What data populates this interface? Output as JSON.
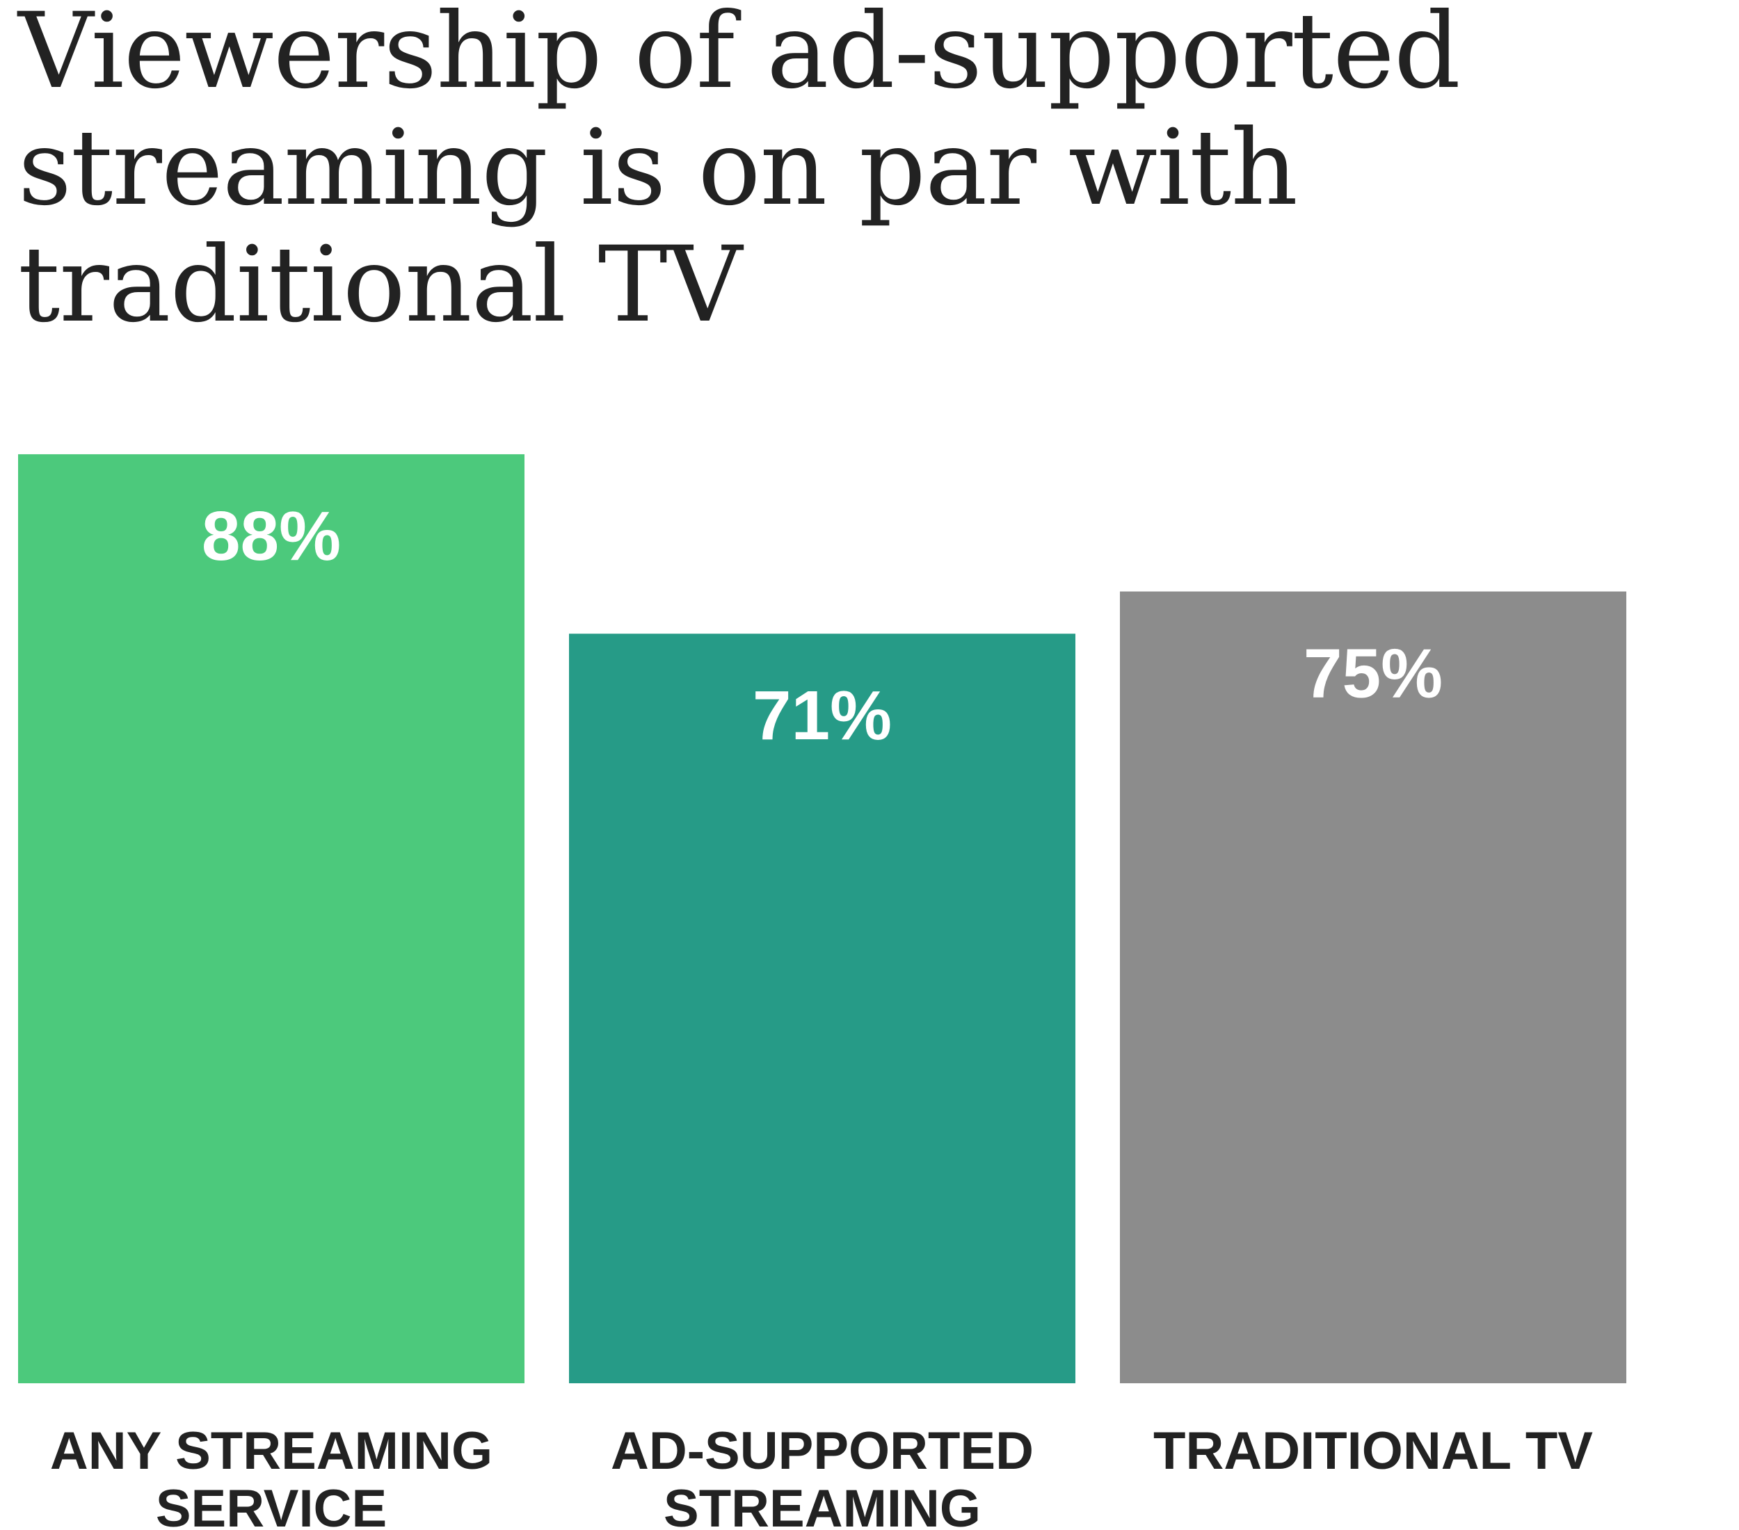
{
  "chart_data": {
    "type": "bar",
    "title": "Viewership of ad-supported streaming is on par with traditional TV",
    "categories": [
      [
        "ANY STREAMING",
        "SERVICE"
      ],
      [
        "AD-SUPPORTED",
        "STREAMING"
      ],
      [
        "TRADITIONAL TV"
      ]
    ],
    "values": [
      88,
      71,
      75
    ],
    "value_labels": [
      "88%",
      "71%",
      "75%"
    ],
    "colors": [
      "#4cc97c",
      "#269b87",
      "#8c8c8c"
    ],
    "xlabel": "",
    "ylabel": "",
    "ylim": [
      0,
      100
    ],
    "grid": false,
    "axes_visible": false
  }
}
